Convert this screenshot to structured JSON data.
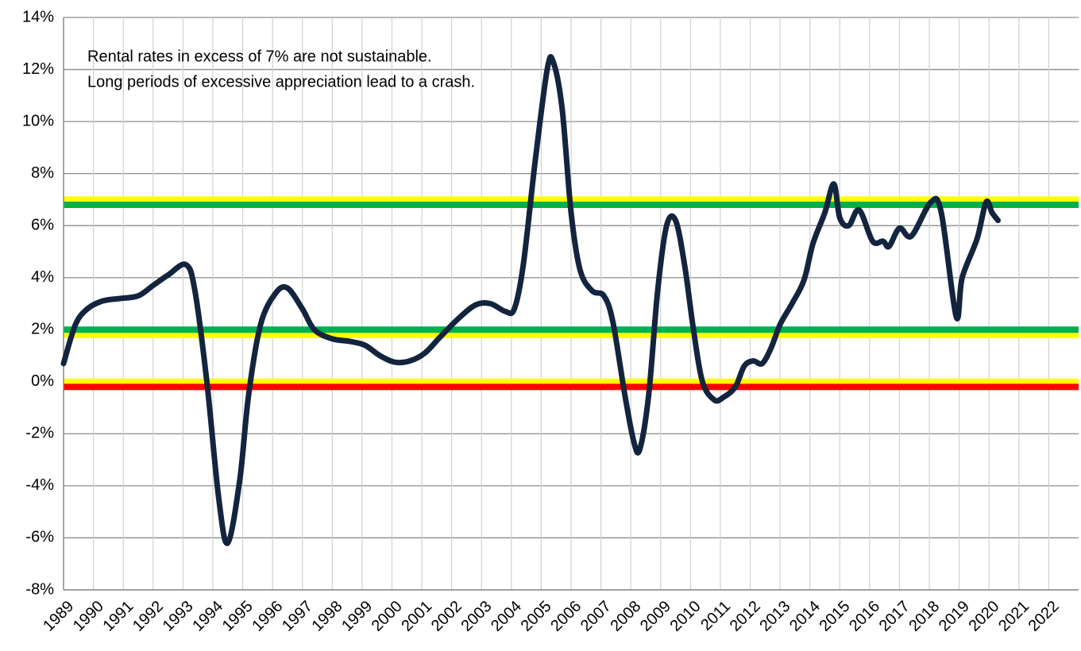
{
  "chart_data": {
    "type": "line",
    "annotations": [
      "Rental rates in excess of 7% are not sustainable.",
      "Long periods of excessive appreciation lead to a crash."
    ],
    "x": [
      1989.0,
      1989.4,
      1989.8,
      1990.3,
      1990.9,
      1991.5,
      1992.0,
      1992.5,
      1993.1,
      1993.4,
      1993.8,
      1994.2,
      1994.5,
      1994.9,
      1995.2,
      1995.6,
      1996.1,
      1996.5,
      1997.0,
      1997.4,
      1998.0,
      1998.6,
      1999.1,
      1999.6,
      2000.1,
      2000.6,
      2001.1,
      2001.6,
      2002.2,
      2002.8,
      2003.3,
      2003.8,
      2004.1,
      2004.4,
      2004.8,
      2005.2,
      2005.4,
      2005.7,
      2006.0,
      2006.3,
      2006.7,
      2007.1,
      2007.4,
      2007.8,
      2008.1,
      2008.3,
      2008.6,
      2008.9,
      2009.2,
      2009.5,
      2009.8,
      2010.1,
      2010.4,
      2010.8,
      2011.1,
      2011.5,
      2011.8,
      2012.1,
      2012.4,
      2012.7,
      2013.0,
      2013.4,
      2013.8,
      2014.1,
      2014.5,
      2014.8,
      2015.0,
      2015.3,
      2015.65,
      2016.1,
      2016.45,
      2016.65,
      2017.0,
      2017.4,
      2018.05,
      2018.4,
      2018.9,
      2019.1,
      2019.6,
      2019.9,
      2020.1,
      2020.3
    ],
    "series": [
      {
        "color": "#13243f",
        "values": [
          0.7,
          2.2,
          2.8,
          3.1,
          3.2,
          3.3,
          3.7,
          4.1,
          4.5,
          3.5,
          0.0,
          -4.5,
          -6.2,
          -3.8,
          -0.5,
          2.2,
          3.4,
          3.6,
          2.8,
          2.0,
          1.65,
          1.55,
          1.4,
          1.0,
          0.75,
          0.8,
          1.1,
          1.7,
          2.4,
          2.95,
          3.0,
          2.7,
          2.8,
          4.5,
          8.5,
          12.0,
          12.3,
          10.5,
          6.5,
          4.3,
          3.5,
          3.3,
          2.3,
          -0.5,
          -2.3,
          -2.6,
          -0.5,
          3.5,
          6.0,
          6.2,
          4.5,
          2.0,
          0.0,
          -0.7,
          -0.6,
          -0.2,
          0.6,
          0.8,
          0.7,
          1.3,
          2.2,
          3.0,
          3.9,
          5.3,
          6.5,
          7.6,
          6.3,
          6.0,
          6.6,
          5.4,
          5.4,
          5.2,
          5.9,
          5.6,
          6.9,
          6.5,
          2.5,
          4.0,
          5.5,
          6.9,
          6.5,
          6.2
        ]
      }
    ],
    "reference_lines": [
      {
        "value": 7,
        "color": "#ffff00"
      },
      {
        "value": 6.8,
        "color": "#00b050"
      },
      {
        "value": 1.8,
        "color": "#ffff00"
      },
      {
        "value": 2,
        "color": "#00b050"
      },
      {
        "value": 0,
        "color": "#ffff00"
      },
      {
        "value": -0.2,
        "color": "#ff0000"
      }
    ],
    "xlim": [
      1989,
      2023
    ],
    "xticks": [
      1989,
      1990,
      1991,
      1992,
      1993,
      1994,
      1995,
      1996,
      1997,
      1998,
      1999,
      2000,
      2001,
      2002,
      2003,
      2004,
      2005,
      2006,
      2007,
      2008,
      2009,
      2010,
      2011,
      2012,
      2013,
      2014,
      2015,
      2016,
      2017,
      2018,
      2019,
      2020,
      2021,
      2022
    ],
    "ylim": [
      -8,
      14
    ],
    "yticks": [
      {
        "value": -8,
        "label": "-8%"
      },
      {
        "value": -6,
        "label": "-6%"
      },
      {
        "value": -4,
        "label": "-4%"
      },
      {
        "value": -2,
        "label": "-2%"
      },
      {
        "value": 0,
        "label": "0%"
      },
      {
        "value": 2,
        "label": "2%"
      },
      {
        "value": 4,
        "label": "4%"
      },
      {
        "value": 6,
        "label": "6%"
      },
      {
        "value": 8,
        "label": "8%"
      },
      {
        "value": 10,
        "label": "10%"
      },
      {
        "value": 12,
        "label": "12%"
      },
      {
        "value": 14,
        "label": "14%"
      }
    ],
    "grid": true
  }
}
